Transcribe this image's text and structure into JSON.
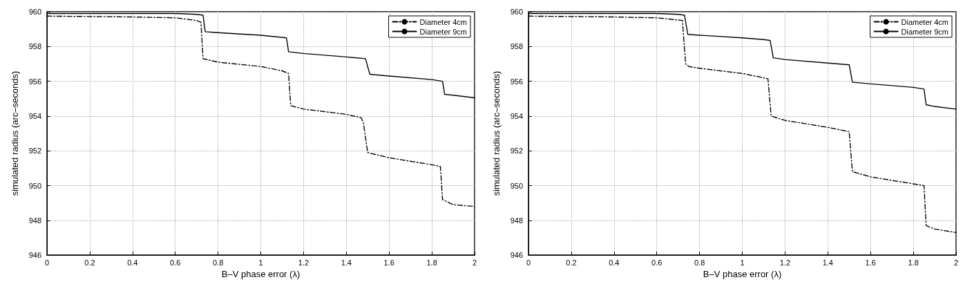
{
  "chart_data": [
    {
      "type": "line",
      "xlabel": "B–V phase error (λ)",
      "ylabel": "simulated radius (arc–seconds)",
      "xlim": [
        0,
        2
      ],
      "xticks": [
        0,
        0.2,
        0.4,
        0.6,
        0.8,
        1,
        1.2,
        1.4,
        1.6,
        1.8,
        2
      ],
      "ylim": [
        946,
        960
      ],
      "yticks": [
        946,
        948,
        950,
        952,
        954,
        956,
        958,
        960
      ],
      "grid": true,
      "legend": "top right",
      "marker": "none",
      "series": [
        {
          "name": "Diameter 4cm",
          "color": "#000000",
          "line_style": "dashed",
          "x": [
            0,
            0.4,
            0.6,
            0.7,
            0.72,
            0.73,
            0.8,
            1.0,
            1.1,
            1.13,
            1.14,
            1.2,
            1.4,
            1.47,
            1.48,
            1.5,
            1.6,
            1.8,
            1.84,
            1.85,
            1.9,
            2
          ],
          "values": [
            959.75,
            959.7,
            959.65,
            959.5,
            959.4,
            957.3,
            957.1,
            956.85,
            956.6,
            956.45,
            954.6,
            954.4,
            954.1,
            953.9,
            953.6,
            951.9,
            951.6,
            951.2,
            951.1,
            949.2,
            948.9,
            948.8
          ]
        },
        {
          "name": "Diameter 9cm",
          "color": "#000000",
          "line_style": "solid",
          "x": [
            0,
            0.6,
            0.7,
            0.73,
            0.74,
            0.8,
            1.0,
            1.12,
            1.13,
            1.2,
            1.4,
            1.49,
            1.51,
            1.6,
            1.8,
            1.85,
            1.86,
            1.9,
            2
          ],
          "values": [
            959.9,
            959.9,
            959.85,
            959.8,
            958.85,
            958.8,
            958.65,
            958.5,
            957.7,
            957.6,
            957.4,
            957.3,
            956.4,
            956.3,
            956.1,
            956.0,
            955.25,
            955.2,
            955.05
          ]
        }
      ]
    },
    {
      "type": "line",
      "xlabel": "B–V phase error (λ)",
      "ylabel": "simulated radius (arc–seconds)",
      "xlim": [
        0,
        2
      ],
      "xticks": [
        0,
        0.2,
        0.4,
        0.6,
        0.8,
        1,
        1.2,
        1.4,
        1.6,
        1.8,
        2
      ],
      "ylim": [
        946,
        960
      ],
      "yticks": [
        946,
        948,
        950,
        952,
        954,
        956,
        958,
        960
      ],
      "grid": true,
      "legend": "top right",
      "marker": "none",
      "series": [
        {
          "name": "Diameter 4cm",
          "color": "#000000",
          "line_style": "dashed",
          "x": [
            0,
            0.4,
            0.6,
            0.72,
            0.735,
            0.75,
            0.8,
            1.0,
            1.12,
            1.135,
            1.2,
            1.4,
            1.5,
            1.515,
            1.6,
            1.8,
            1.85,
            1.86,
            1.9,
            2
          ],
          "values": [
            959.75,
            959.7,
            959.65,
            959.5,
            957.0,
            956.85,
            956.75,
            956.45,
            956.15,
            954.0,
            953.75,
            953.35,
            953.1,
            950.8,
            950.5,
            950.1,
            950.0,
            947.7,
            947.5,
            947.3
          ]
        },
        {
          "name": "Diameter 9cm",
          "color": "#000000",
          "line_style": "solid",
          "x": [
            0,
            0.6,
            0.7,
            0.73,
            0.745,
            0.8,
            1.0,
            1.1,
            1.13,
            1.145,
            1.2,
            1.4,
            1.5,
            1.515,
            1.6,
            1.8,
            1.85,
            1.86,
            1.9,
            2
          ],
          "values": [
            959.9,
            959.9,
            959.85,
            959.8,
            958.7,
            958.65,
            958.5,
            958.4,
            958.35,
            957.35,
            957.25,
            957.05,
            956.95,
            955.95,
            955.85,
            955.65,
            955.55,
            954.65,
            954.55,
            954.4
          ]
        }
      ]
    }
  ]
}
